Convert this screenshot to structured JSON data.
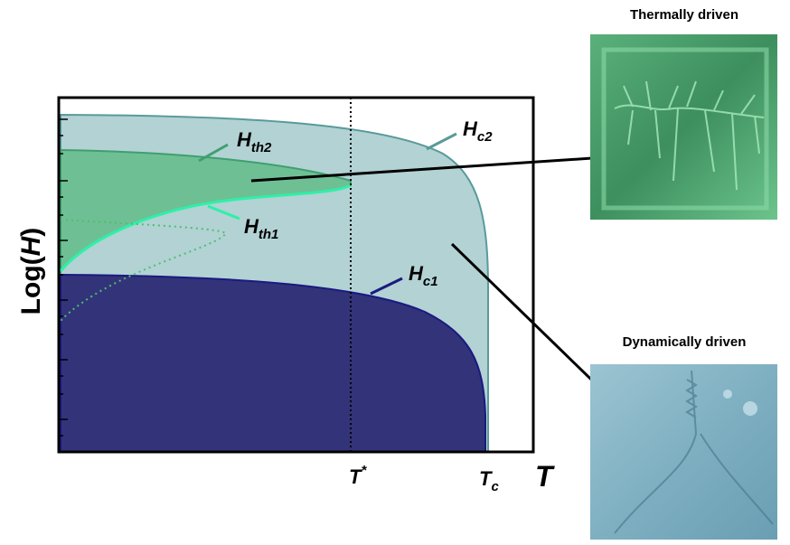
{
  "axes": {
    "y_label": [
      "Log(",
      "H",
      ")"
    ],
    "x_label": "T",
    "x_markers": [
      {
        "main": "T",
        "sup": "*"
      },
      {
        "main": "T",
        "sub": "c"
      }
    ]
  },
  "curves": [
    {
      "main": "H",
      "sub": "c2"
    },
    {
      "main": "H",
      "sub": "th2"
    },
    {
      "main": "H",
      "sub": "th1"
    },
    {
      "main": "H",
      "sub": "c1"
    }
  ],
  "images": [
    {
      "title": "Thermally driven"
    },
    {
      "title": "Dynamically driven"
    }
  ]
}
